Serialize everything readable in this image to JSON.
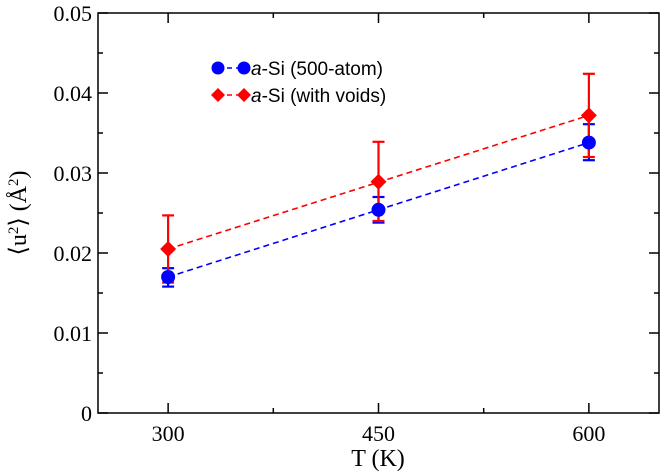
{
  "chart_data": {
    "type": "scatter",
    "title": "",
    "xlabel": "T (K)",
    "ylabel": "⟨u²⟩ (Å²)",
    "ylabel_parts": {
      "open": "⟨u",
      "sup": "2",
      "close": "⟩ (Å",
      "sup2": "2",
      "end": ")"
    },
    "xlim": [
      250,
      650
    ],
    "ylim": [
      0,
      0.05
    ],
    "xticks": [
      300,
      450,
      600
    ],
    "xtick_labels": [
      "300",
      "450",
      "600"
    ],
    "yticks": [
      0,
      0.01,
      0.02,
      0.03,
      0.04,
      0.05
    ],
    "ytick_labels": [
      "0",
      "0.01",
      "0.02",
      "0.03",
      "0.04",
      "0.05"
    ],
    "legend_position": "top-left",
    "series": [
      {
        "name": "a-Si (500-atom)",
        "name_italic": "a",
        "name_rest": "-Si (500-atom)",
        "marker": "circle",
        "color": "#0000ff",
        "x": [
          300,
          450,
          600
        ],
        "y": [
          0.017,
          0.0254,
          0.0338
        ],
        "yerr_low": [
          0.0158,
          0.0238,
          0.0316
        ],
        "yerr_high": [
          0.0181,
          0.027,
          0.0361
        ],
        "fit": [
          0.017,
          0.0338
        ]
      },
      {
        "name": "a-Si (with voids)",
        "name_italic": "a",
        "name_rest": "-Si (with voids)",
        "marker": "diamond",
        "color": "#ff0000",
        "x": [
          300,
          450,
          600
        ],
        "y": [
          0.0205,
          0.0289,
          0.0372
        ],
        "yerr_low": [
          0.0163,
          0.024,
          0.032
        ],
        "yerr_high": [
          0.0247,
          0.0339,
          0.0424
        ],
        "fit": [
          0.0205,
          0.0372
        ]
      }
    ]
  }
}
